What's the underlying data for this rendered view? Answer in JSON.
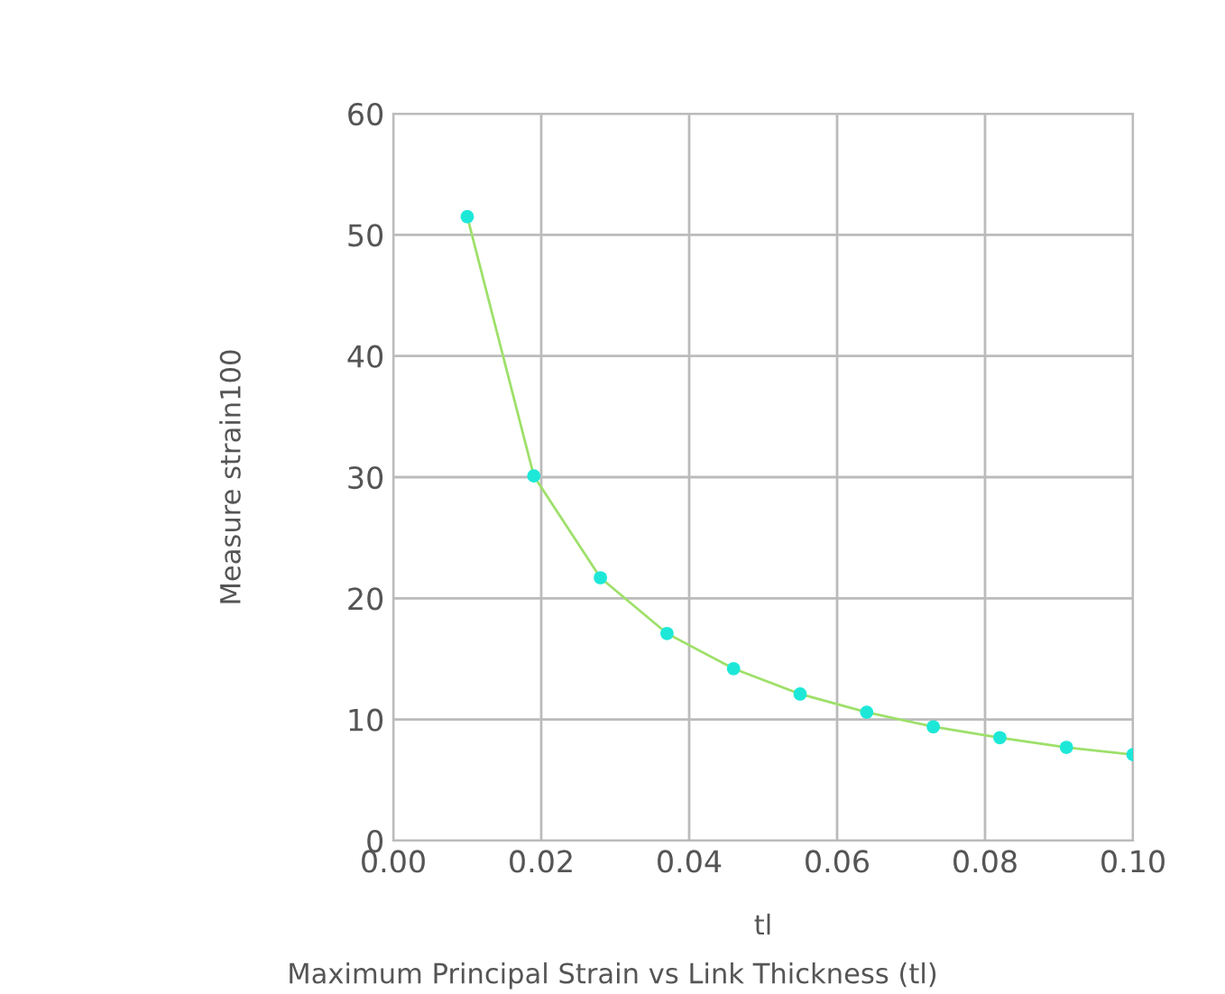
{
  "chart_data": {
    "type": "line",
    "title": "Maximum Principal Strain vs Link Thickness (tl)",
    "xlabel": "tl",
    "ylabel": "Measure strain100",
    "x": [
      0.01,
      0.019,
      0.028,
      0.037,
      0.046,
      0.055,
      0.064,
      0.073,
      0.082,
      0.091,
      0.1
    ],
    "series": [
      {
        "color": "#9ee06a",
        "marker": "none",
        "values": [
          51.5,
          30.1,
          21.7,
          17.1,
          14.2,
          12.1,
          10.6,
          9.4,
          8.5,
          7.7,
          7.1
        ]
      },
      {
        "type": "scatter",
        "marker": "circle",
        "color": "#1de8d8",
        "values": [
          51.5,
          30.1,
          21.7,
          17.1,
          14.2,
          12.1,
          10.6,
          9.4,
          8.5,
          7.7,
          7.1
        ]
      }
    ],
    "line_style": "solid",
    "xlim": [
      0.0,
      0.1
    ],
    "ylim": [
      0,
      60
    ],
    "xticks": [
      {
        "value": 0.0,
        "label": "0.00"
      },
      {
        "value": 0.02,
        "label": "0.02"
      },
      {
        "value": 0.04,
        "label": "0.04"
      },
      {
        "value": 0.06,
        "label": "0.06"
      },
      {
        "value": 0.08,
        "label": "0.08"
      },
      {
        "value": 0.1,
        "label": "0.10"
      }
    ],
    "yticks": [
      0,
      10,
      20,
      30,
      40,
      50,
      60
    ],
    "grid": true
  }
}
